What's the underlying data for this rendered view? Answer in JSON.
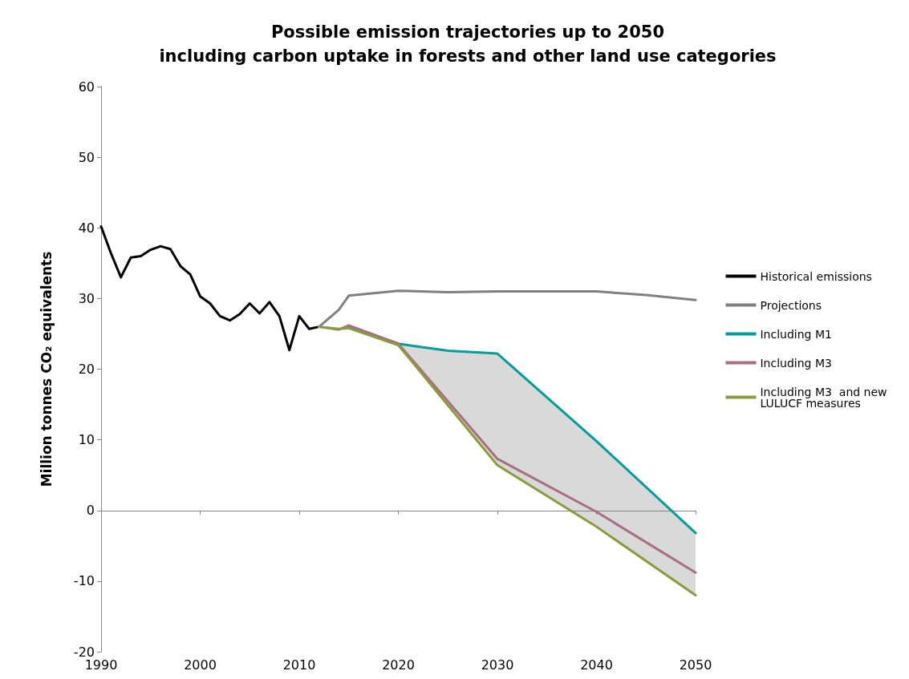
{
  "chart_data": {
    "type": "line",
    "title": "Possible emission trajectories up to 2050\nincluding carbon uptake in forests and other land use categories",
    "ylabel": "Million tonnes CO₂ equivalents",
    "xlim": [
      1990,
      2050
    ],
    "xticks": [
      1990,
      2000,
      2010,
      2020,
      2030,
      2040,
      2050
    ],
    "ylim": [
      -20,
      60
    ],
    "yticks": [
      -20,
      -10,
      0,
      10,
      20,
      30,
      40,
      50,
      60
    ],
    "legend": "right",
    "marker": "none",
    "line_style": "solid",
    "series": [
      {
        "name": "Historical emissions",
        "color": "#000000",
        "x": [
          1990,
          1991,
          1992,
          1993,
          1994,
          1995,
          1996,
          1997,
          1998,
          1999,
          2000,
          2001,
          2002,
          2003,
          2004,
          2005,
          2006,
          2007,
          2008,
          2009,
          2010,
          2011,
          2012
        ],
        "values": [
          40.2,
          36.4,
          33.0,
          35.8,
          36.0,
          36.9,
          37.4,
          37.0,
          34.6,
          33.4,
          30.3,
          29.3,
          27.5,
          26.9,
          27.8,
          29.3,
          27.9,
          29.5,
          27.5,
          22.7,
          27.5,
          25.7,
          26.0
        ]
      },
      {
        "name": "Projections",
        "color": "#808080",
        "x": [
          2012,
          2014,
          2015,
          2020,
          2025,
          2030,
          2035,
          2040,
          2045,
          2050
        ],
        "values": [
          26.0,
          28.4,
          30.4,
          31.1,
          30.9,
          31.0,
          31.0,
          31.0,
          30.5,
          29.8
        ]
      },
      {
        "name": "Including M1",
        "color": "#009e9a",
        "x": [
          2015,
          2020,
          2025,
          2030,
          2040,
          2050
        ],
        "values": [
          26.0,
          23.6,
          22.6,
          22.2,
          9.8,
          -3.2
        ],
        "lower": [
          null,
          23.4,
          14.9,
          6.4,
          -2.3,
          -12.0
        ],
        "upper": [
          null,
          23.6,
          22.6,
          22.2,
          9.8,
          -3.2
        ]
      },
      {
        "name": "Including M3",
        "color": "#a8707e",
        "x": [
          2012,
          2014,
          2015,
          2020,
          2030,
          2040,
          2050
        ],
        "values": [
          26.0,
          25.6,
          26.2,
          23.6,
          7.3,
          -0.2,
          -8.8
        ]
      },
      {
        "name": "Including M3  and new LULUCF measures",
        "color": "#8a9a3c",
        "x": [
          2012,
          2014,
          2015,
          2020,
          2025,
          2030,
          2040,
          2050
        ],
        "values": [
          26.0,
          25.7,
          25.8,
          23.4,
          14.9,
          6.4,
          -2.3,
          -12.0
        ]
      }
    ]
  }
}
